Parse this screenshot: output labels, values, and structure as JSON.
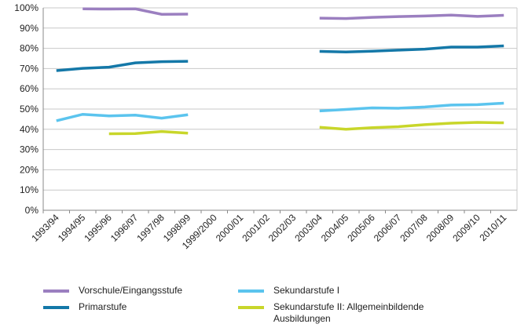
{
  "chart_data": {
    "type": "line",
    "categories": [
      "1993/94",
      "1994/95",
      "1995/96",
      "1996/97",
      "1997/98",
      "1998/99",
      "1999/2000",
      "2000/01",
      "2001/02",
      "2002/03",
      "2003/04",
      "2004/05",
      "2005/06",
      "2006/07",
      "2007/08",
      "2008/09",
      "2009/10",
      "2010/11"
    ],
    "series": [
      {
        "name": "Vorschule/Eingangsstufe",
        "color": "#9b7fc0",
        "values": [
          null,
          99.5,
          99.4,
          99.5,
          96.8,
          96.9,
          null,
          null,
          null,
          null,
          94.9,
          94.7,
          95.3,
          95.7,
          96.0,
          96.4,
          95.8,
          96.3
        ]
      },
      {
        "name": "Primarstufe",
        "color": "#1478a8",
        "values": [
          69.0,
          70.1,
          70.7,
          72.8,
          73.4,
          73.6,
          null,
          null,
          null,
          null,
          78.5,
          78.2,
          78.6,
          79.1,
          79.6,
          80.6,
          80.6,
          81.2
        ]
      },
      {
        "name": "Sekundarstufe I",
        "color": "#5bc4ee",
        "values": [
          44.2,
          47.4,
          46.6,
          47.0,
          45.5,
          47.2,
          null,
          null,
          null,
          null,
          49.1,
          49.8,
          50.6,
          50.4,
          51.0,
          52.0,
          52.2,
          52.9
        ]
      },
      {
        "name": "Sekundarstufe II: Allgemeinbildende Ausbildungen",
        "color": "#c8d62a",
        "values": [
          null,
          null,
          37.8,
          37.9,
          38.9,
          38.1,
          null,
          null,
          null,
          null,
          41.0,
          40.0,
          40.8,
          41.3,
          42.3,
          43.0,
          43.4,
          43.2
        ]
      }
    ],
    "ylim": [
      0,
      100
    ],
    "yticks": [
      {
        "value": 0,
        "label": "0%"
      },
      {
        "value": 10,
        "label": "10%"
      },
      {
        "value": 20,
        "label": "20%"
      },
      {
        "value": 30,
        "label": "30%"
      },
      {
        "value": 40,
        "label": "40%"
      },
      {
        "value": 50,
        "label": "50%"
      },
      {
        "value": 60,
        "label": "60%"
      },
      {
        "value": 70,
        "label": "70%"
      },
      {
        "value": 80,
        "label": "80%"
      },
      {
        "value": 90,
        "label": "90%"
      },
      {
        "value": 100,
        "label": "100%"
      }
    ],
    "grid": true
  }
}
